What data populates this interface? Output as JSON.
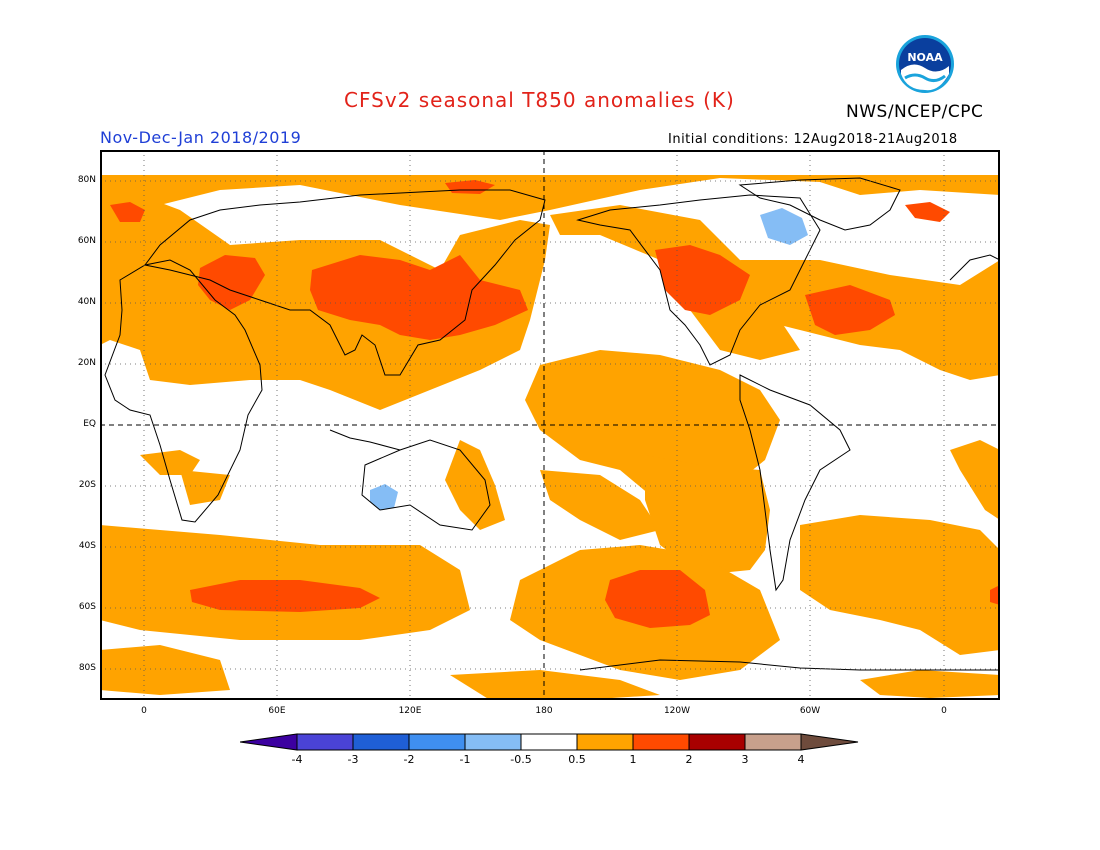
{
  "title": "CFSv2 seasonal T850 anomalies (K)",
  "agency": "NWS/NCEP/CPC",
  "logo_text": "NOAA",
  "period": "Nov-Dec-Jan 2018/2019",
  "initial_conditions": "Initial conditions: 12Aug2018-21Aug2018",
  "lat_labels": [
    "80N",
    "60N",
    "40N",
    "20N",
    "EQ",
    "20S",
    "40S",
    "60S",
    "80S"
  ],
  "lon_labels": [
    "0",
    "60E",
    "120E",
    "180",
    "120W",
    "60W",
    "0"
  ],
  "colorbar": {
    "labels": [
      "-4",
      "-3",
      "-2",
      "-1",
      "-0.5",
      "0.5",
      "1",
      "2",
      "3",
      "4"
    ],
    "colors": [
      "#3c00a0",
      "#4a43d6",
      "#1f5fd6",
      "#3f8ff0",
      "#85bdf5",
      "#ffffff",
      "#ffa300",
      "#ff4a00",
      "#a80000",
      "#c8a08c",
      "#6e4b3c"
    ]
  },
  "colors": {
    "weak_warm": "#ffa300",
    "moderate_warm": "#ff4a00",
    "weak_cold": "#85bdf5",
    "title": "#e2231a",
    "period": "#1f3fd6"
  }
}
